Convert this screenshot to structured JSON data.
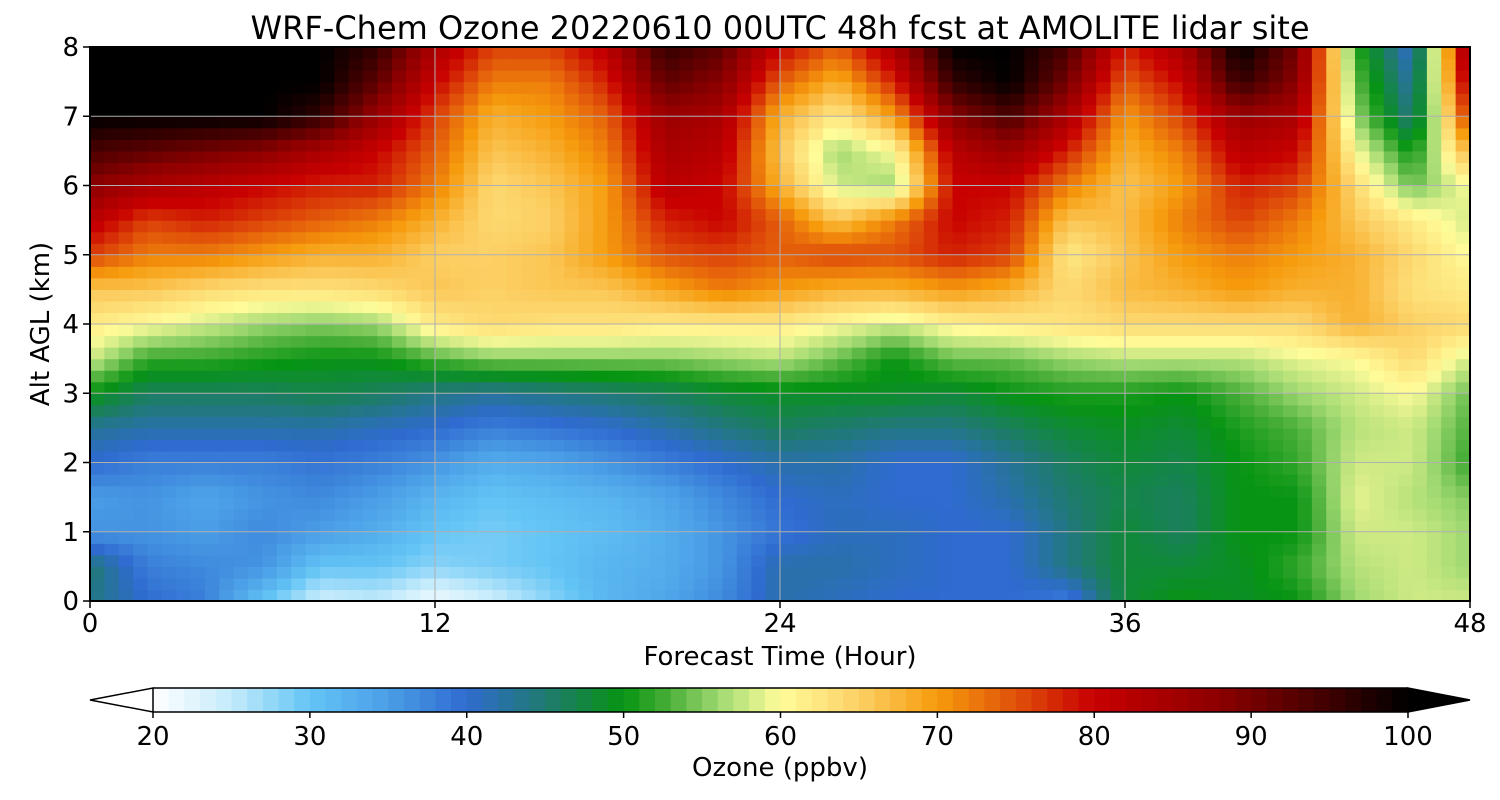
{
  "chart_data": {
    "type": "heatmap",
    "title": "WRF-Chem Ozone  20220610 00UTC 48h fcst at AMOLITE lidar site",
    "xlabel": "Forecast Time (Hour)",
    "ylabel": "Alt AGL (km)",
    "xlim": [
      0,
      48
    ],
    "ylim": [
      0,
      8
    ],
    "x_ticks": [
      "0",
      "12",
      "24",
      "36",
      "48"
    ],
    "y_ticks": [
      "0",
      "1",
      "2",
      "3",
      "4",
      "5",
      "6",
      "7",
      "8"
    ],
    "grid": true,
    "x_hours": [
      0,
      2,
      4,
      6,
      8,
      10,
      12,
      14,
      16,
      18,
      20,
      22,
      24,
      26,
      28,
      30,
      32,
      34,
      36,
      38,
      40,
      42,
      44,
      46,
      48
    ],
    "altitudes_km": [
      0,
      0.5,
      1,
      1.5,
      2,
      2.5,
      3,
      3.5,
      4,
      4.5,
      5,
      5.5,
      6,
      6.5,
      7,
      7.5,
      8
    ],
    "ozone_ppbv": [
      [
        44,
        40,
        38,
        30,
        24,
        25,
        21,
        24,
        28,
        32,
        34,
        37,
        42,
        41,
        40,
        40,
        40,
        38,
        48,
        50,
        49,
        50,
        56,
        58,
        58
      ],
      [
        45,
        38,
        37,
        36,
        30,
        30,
        28,
        29,
        30,
        32,
        33,
        36,
        42,
        42,
        41,
        40,
        40,
        44,
        48,
        48,
        49,
        52,
        57,
        58,
        56
      ],
      [
        36,
        36,
        35,
        37,
        35,
        33,
        30,
        29,
        30,
        31,
        33,
        36,
        39,
        41,
        41,
        40,
        40,
        44,
        48,
        46,
        50,
        50,
        58,
        58,
        56
      ],
      [
        35,
        36,
        34,
        36,
        37,
        35,
        32,
        30,
        31,
        32,
        34,
        37,
        40,
        41,
        40,
        40,
        42,
        45,
        47,
        46,
        50,
        50,
        59,
        57,
        55
      ],
      [
        40,
        38,
        38,
        38,
        39,
        38,
        36,
        33,
        34,
        36,
        38,
        40,
        42,
        42,
        40,
        40,
        43,
        46,
        48,
        47,
        50,
        52,
        58,
        58,
        52
      ],
      [
        43,
        42,
        42,
        42,
        42,
        41,
        40,
        38,
        39,
        40,
        42,
        44,
        46,
        45,
        44,
        44,
        46,
        48,
        49,
        48,
        51,
        53,
        57,
        58,
        53
      ],
      [
        50,
        46,
        46,
        46,
        47,
        46,
        44,
        43,
        44,
        45,
        46,
        48,
        49,
        49,
        49,
        48,
        50,
        51,
        51,
        50,
        53,
        56,
        58,
        60,
        54
      ],
      [
        58,
        52,
        52,
        51,
        50,
        50,
        53,
        55,
        55,
        55,
        55,
        56,
        57,
        54,
        50,
        54,
        54,
        56,
        57,
        57,
        57,
        59,
        60,
        64,
        58
      ],
      [
        62,
        60,
        58,
        56,
        55,
        56,
        62,
        64,
        63,
        63,
        62,
        62,
        62,
        60,
        58,
        61,
        62,
        63,
        64,
        64,
        64,
        64,
        68,
        65,
        64
      ],
      [
        66,
        66,
        64,
        63,
        63,
        64,
        66,
        65,
        66,
        66,
        69,
        72,
        70,
        68,
        68,
        70,
        68,
        64,
        67,
        68,
        70,
        68,
        68,
        63,
        62
      ],
      [
        76,
        72,
        72,
        70,
        68,
        68,
        65,
        65,
        66,
        70,
        75,
        76,
        74,
        76,
        75,
        78,
        76,
        62,
        66,
        70,
        72,
        70,
        68,
        64,
        60
      ],
      [
        82,
        76,
        78,
        76,
        74,
        72,
        68,
        64,
        65,
        70,
        78,
        80,
        74,
        66,
        72,
        80,
        78,
        66,
        67,
        72,
        76,
        72,
        66,
        62,
        58
      ],
      [
        88,
        84,
        82,
        80,
        78,
        78,
        72,
        64,
        66,
        70,
        82,
        80,
        68,
        58,
        56,
        80,
        80,
        72,
        66,
        70,
        78,
        76,
        64,
        54,
        60
      ],
      [
        94,
        92,
        90,
        88,
        84,
        80,
        74,
        66,
        68,
        72,
        84,
        82,
        66,
        56,
        60,
        82,
        86,
        78,
        68,
        72,
        82,
        80,
        60,
        50,
        68
      ],
      [
        100,
        100,
        100,
        100,
        96,
        86,
        76,
        68,
        70,
        74,
        86,
        84,
        68,
        62,
        70,
        88,
        94,
        84,
        70,
        76,
        86,
        84,
        56,
        44,
        78
      ],
      [
        100,
        100,
        100,
        100,
        100,
        92,
        80,
        72,
        72,
        78,
        92,
        88,
        74,
        68,
        78,
        96,
        100,
        90,
        74,
        80,
        96,
        88,
        54,
        42,
        84
      ],
      [
        100,
        100,
        100,
        100,
        100,
        96,
        84,
        76,
        76,
        82,
        96,
        92,
        80,
        74,
        84,
        100,
        100,
        94,
        78,
        84,
        100,
        90,
        52,
        40,
        88
      ]
    ],
    "colorbar": {
      "label": "Ozone  (ppbv)",
      "ticks": [
        "20",
        "30",
        "40",
        "50",
        "60",
        "70",
        "80",
        "90",
        "100"
      ],
      "range": [
        20,
        100
      ],
      "extend": "both",
      "color_stops": [
        {
          "v": 20,
          "c": "#ffffff"
        },
        {
          "v": 25,
          "c": "#c4ebfb"
        },
        {
          "v": 30,
          "c": "#63c4f5"
        },
        {
          "v": 35,
          "c": "#4a9ee6"
        },
        {
          "v": 40,
          "c": "#2f6bd0"
        },
        {
          "v": 45,
          "c": "#1f7a70"
        },
        {
          "v": 50,
          "c": "#069412"
        },
        {
          "v": 53,
          "c": "#4cb03a"
        },
        {
          "v": 56,
          "c": "#9ed870"
        },
        {
          "v": 60,
          "c": "#fffc9a"
        },
        {
          "v": 65,
          "c": "#fcd065"
        },
        {
          "v": 70,
          "c": "#f69b0c"
        },
        {
          "v": 75,
          "c": "#e0500a"
        },
        {
          "v": 80,
          "c": "#c80000"
        },
        {
          "v": 88,
          "c": "#8c0000"
        },
        {
          "v": 95,
          "c": "#3e0000"
        },
        {
          "v": 100,
          "c": "#000000"
        }
      ]
    }
  }
}
